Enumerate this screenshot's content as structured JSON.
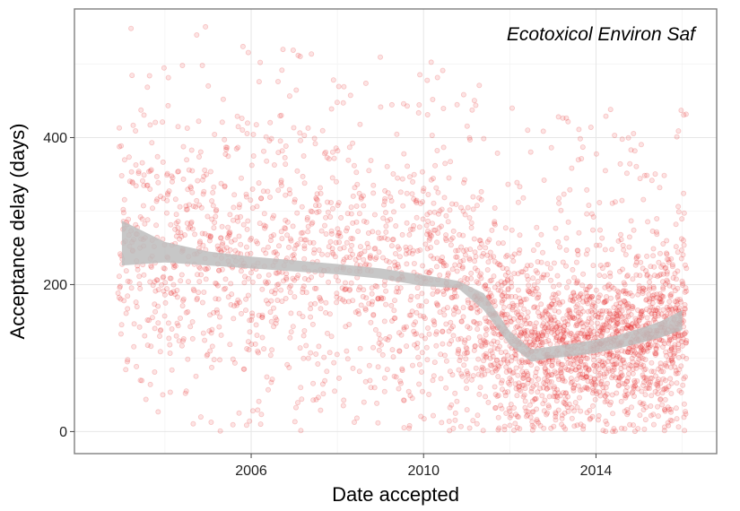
{
  "chart_data": {
    "type": "scatter",
    "title": "",
    "annotation": "Ecotoxicol Environ Saf",
    "xlabel": "Date accepted",
    "ylabel": "Acceptance delay (days)",
    "xlim": [
      2001.9,
      2016.8
    ],
    "ylim": [
      -30,
      575
    ],
    "x_ticks": [
      2006,
      2010,
      2014
    ],
    "y_ticks": [
      0,
      200,
      400
    ],
    "x_minor_ticks": [
      2004,
      2008,
      2012,
      2016
    ],
    "y_minor_ticks": [
      100,
      300,
      500
    ],
    "grid": true,
    "point_color": "#e41a1c",
    "point_opacity": 0.12,
    "smooth_band_color": "#bdbdbd",
    "smooth": {
      "x": [
        2003.0,
        2004.0,
        2005.0,
        2006.0,
        2007.0,
        2008.0,
        2009.0,
        2010.0,
        2010.8,
        2011.4,
        2012.0,
        2012.5,
        2013.0,
        2013.5,
        2014.0,
        2014.5,
        2015.0,
        2015.5,
        2016.0
      ],
      "lower": [
        226,
        230,
        226,
        222,
        218,
        214,
        208,
        198,
        195,
        165,
        118,
        95,
        100,
        103,
        107,
        113,
        120,
        128,
        138
      ],
      "upper": [
        287,
        258,
        245,
        238,
        233,
        228,
        222,
        213,
        205,
        188,
        137,
        112,
        116,
        120,
        125,
        131,
        140,
        150,
        165
      ]
    },
    "points": {
      "x_min": 2002.9,
      "x_max": 2016.0,
      "density": [
        [
          2003,
          14
        ],
        [
          2004,
          16
        ],
        [
          2005,
          16
        ],
        [
          2006,
          16
        ],
        [
          2007,
          16
        ],
        [
          2008,
          16
        ],
        [
          2009,
          16
        ],
        [
          2010,
          20
        ],
        [
          2011,
          24
        ],
        [
          2012,
          34
        ],
        [
          2013,
          38
        ],
        [
          2014,
          40
        ],
        [
          2015,
          42
        ],
        [
          2016,
          40
        ]
      ],
      "center_days": [
        [
          2003,
          250
        ],
        [
          2006,
          225
        ],
        [
          2009,
          210
        ],
        [
          2010.5,
          190
        ],
        [
          2011.5,
          140
        ],
        [
          2012.5,
          105
        ],
        [
          2014,
          115
        ],
        [
          2016,
          140
        ]
      ],
      "spread_days": [
        [
          2003,
          120
        ],
        [
          2009,
          115
        ],
        [
          2010.5,
          110
        ],
        [
          2011.5,
          90
        ],
        [
          2012.5,
          75
        ],
        [
          2014,
          70
        ],
        [
          2016,
          75
        ]
      ]
    }
  }
}
